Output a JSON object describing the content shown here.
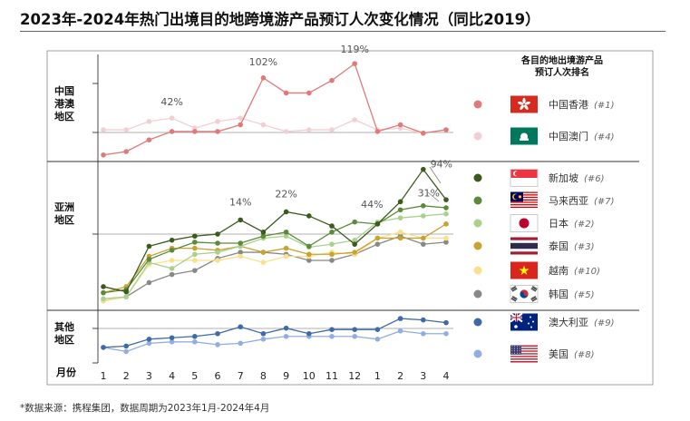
{
  "title": "2023年-2024年热门出境目的地跨境游产品预订人次变化情况（同比2019）",
  "source": "*数据来源：携程集团，数据周期为2023年1月-2024年4月",
  "chart_data": {
    "type": "line",
    "x_ticks": [
      "1",
      "2",
      "3",
      "4",
      "5",
      "6",
      "7",
      "8",
      "9",
      "10",
      "11",
      "12",
      "1",
      "2",
      "3",
      "4"
    ],
    "x_unit_label": "月份",
    "ylabel": "",
    "regions": [
      {
        "name": "中国港澳地区",
        "series": [
          "hk",
          "mo"
        ]
      },
      {
        "name": "亚洲地区",
        "series": [
          "sg",
          "my",
          "jp",
          "th",
          "vn",
          "kr"
        ]
      },
      {
        "name": "其他地区",
        "series": [
          "au",
          "us"
        ]
      }
    ],
    "legend_title": "各目的地出境游产品预订人次排名",
    "series": [
      {
        "id": "hk",
        "name": "中国香港",
        "rank": "(#1)",
        "flag": "hk-flag",
        "color": "#e07a7a",
        "region": 0,
        "values": [
          10,
          14,
          28,
          38,
          38,
          38,
          46,
          102,
          84,
          84,
          99,
          119,
          38,
          46,
          36,
          40
        ]
      },
      {
        "id": "mo",
        "name": "中国澳门",
        "rank": "(#4)",
        "flag": "mo-flag",
        "color": "#f2cfd3",
        "region": 0,
        "values": [
          40,
          40,
          50,
          54,
          42,
          50,
          54,
          46,
          38,
          40,
          40,
          52,
          40,
          42,
          36,
          40
        ]
      },
      {
        "id": "sg",
        "name": "新加坡",
        "rank": "(#6)",
        "flag": "sg-flag",
        "color": "#3b5a1e",
        "region": 1,
        "values": [
          -12,
          -17,
          28,
          34,
          38,
          40,
          54,
          42,
          62,
          58,
          48,
          30,
          50,
          72,
          104,
          74
        ]
      },
      {
        "id": "my",
        "name": "马来西亚",
        "rank": "(#7)",
        "flag": "my-flag",
        "color": "#5a8a3a",
        "region": 1,
        "values": [
          -18,
          -15,
          15,
          24,
          32,
          31,
          31,
          38,
          42,
          28,
          42,
          52,
          50,
          64,
          68,
          66
        ]
      },
      {
        "id": "jp",
        "name": "日本",
        "rank": "(#2)",
        "flag": "jp-flag",
        "color": "#a9d18e",
        "region": 1,
        "values": [
          -24,
          -22,
          12,
          6,
          20,
          22,
          28,
          36,
          38,
          27,
          30,
          34,
          52,
          56,
          58,
          60
        ]
      },
      {
        "id": "th",
        "name": "泰国",
        "rank": "(#3)",
        "flag": "th-flag",
        "color": "#c9a32f",
        "region": 1,
        "values": [
          -18,
          -12,
          18,
          26,
          26,
          24,
          28,
          22,
          26,
          20,
          20,
          22,
          36,
          36,
          36,
          50
        ]
      },
      {
        "id": "vn",
        "name": "越南",
        "rank": "(#10)",
        "flag": "vn-flag",
        "color": "#fbe08a",
        "region": 1,
        "values": [
          -26,
          -22,
          10,
          14,
          14,
          14,
          18,
          12,
          18,
          18,
          22,
          20,
          36,
          42,
          36,
          36
        ]
      },
      {
        "id": "kr",
        "name": "韩国",
        "rank": "(#5)",
        "flag": "kr-flag",
        "color": "#888888",
        "region": 1,
        "values": [
          -26,
          -22,
          -8,
          0,
          4,
          16,
          22,
          22,
          20,
          14,
          14,
          20,
          30,
          38,
          30,
          32
        ]
      },
      {
        "id": "au",
        "name": "澳大利亚",
        "rank": "(#9)",
        "flag": "au-flag",
        "color": "#3f6aa8",
        "region": 2,
        "values": [
          16,
          18,
          28,
          30,
          32,
          36,
          46,
          36,
          44,
          36,
          42,
          42,
          42,
          58,
          56,
          52
        ]
      },
      {
        "id": "us",
        "name": "美国",
        "rank": "(#8)",
        "flag": "us-flag",
        "color": "#92aee0",
        "region": 2,
        "values": [
          16,
          10,
          22,
          24,
          24,
          20,
          22,
          28,
          32,
          32,
          32,
          32,
          28,
          40,
          36,
          36
        ]
      }
    ],
    "annotations": [
      {
        "series": "mo",
        "index": 3,
        "text": "42%"
      },
      {
        "series": "hk",
        "index": 7,
        "text": "102%"
      },
      {
        "series": "hk",
        "index": 11,
        "text": "119%"
      },
      {
        "series": "sg",
        "index": 6,
        "text": "14%"
      },
      {
        "series": "sg",
        "index": 8,
        "text": "22%"
      },
      {
        "series": "sg",
        "index": 12,
        "text": "44%"
      },
      {
        "series": "sg",
        "index": 14,
        "text": "94%"
      },
      {
        "series": "sg",
        "index": 14,
        "text": "31%"
      }
    ]
  }
}
